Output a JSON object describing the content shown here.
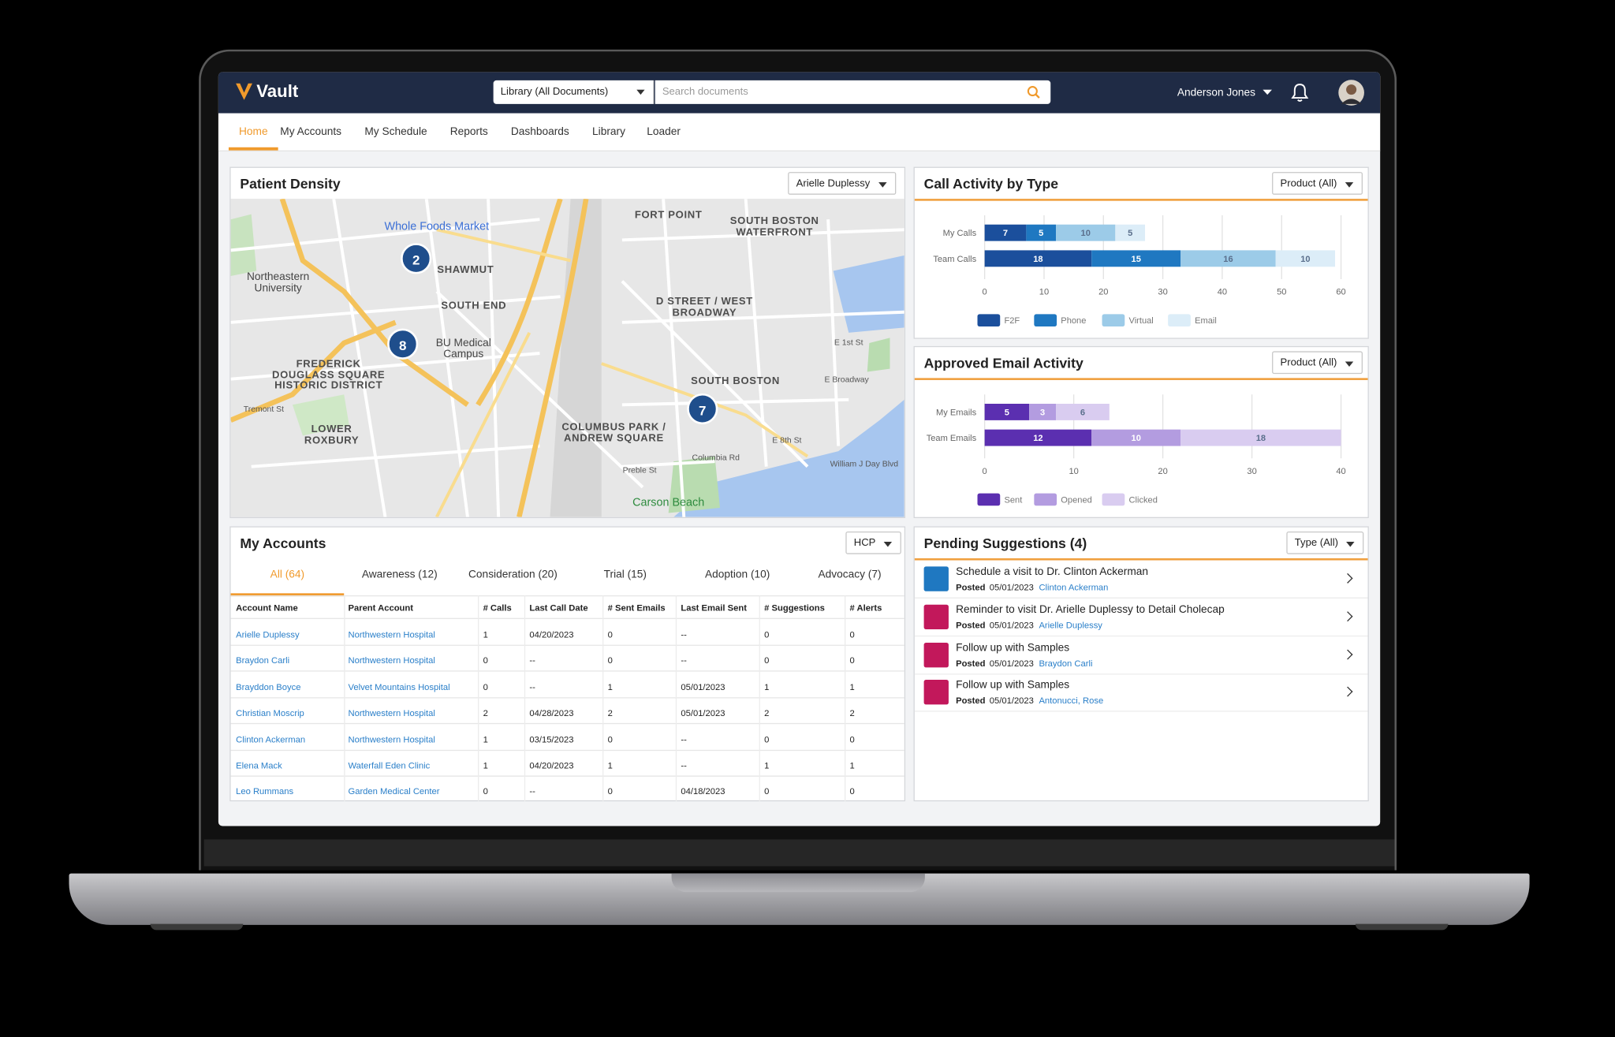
{
  "header": {
    "logo": "Vault",
    "library_select": "Library (All Documents)",
    "search_placeholder": "Search documents",
    "user": "Anderson Jones"
  },
  "nav": [
    "Home",
    "My Accounts",
    "My Schedule",
    "Reports",
    "Dashboards",
    "Library",
    "Loader"
  ],
  "patient_density": {
    "title": "Patient Density",
    "filter": "Arielle Duplessy",
    "labels": [
      "Whole Foods Market",
      "FORT POINT",
      "SOUTH BOSTON WATERFRONT",
      "SHAWMUT",
      "Northeastern University",
      "SOUTH END",
      "D STREET / WEST BROADWAY",
      "BU Medical Campus",
      "FREDERICK DOUGLASS SQUARE HISTORIC DISTRICT",
      "SOUTH BOSTON",
      "COLUMBUS PARK / ANDREW SQUARE",
      "LOWER ROXBURY",
      "Carson Beach",
      "Columbia Rd",
      "E Broadway",
      "E 8th St",
      "Preble St",
      "William J Day Blvd",
      "Tremont St",
      "E 1st St"
    ],
    "clusters": [
      "2",
      "8",
      "7"
    ]
  },
  "chart_data": [
    {
      "type": "bar",
      "orientation": "horizontal",
      "stacked": true,
      "title": "Call Activity by Type",
      "filter": "Product (All)",
      "categories": [
        "My Calls",
        "Team Calls"
      ],
      "series": [
        {
          "name": "F2F",
          "color": "#1b4f9c",
          "values": [
            7,
            18
          ]
        },
        {
          "name": "Phone",
          "color": "#1f78c1",
          "values": [
            5,
            15
          ]
        },
        {
          "name": "Virtual",
          "color": "#9ccbe8",
          "values": [
            10,
            16
          ]
        },
        {
          "name": "Email",
          "color": "#dcedf8",
          "values": [
            5,
            10
          ]
        }
      ],
      "xlim": [
        0,
        60
      ],
      "xticks": [
        0,
        10,
        20,
        30,
        40,
        50,
        60
      ],
      "grid": true
    },
    {
      "type": "bar",
      "orientation": "horizontal",
      "stacked": true,
      "title": "Approved Email Activity",
      "filter": "Product (All)",
      "categories": [
        "My Emails",
        "Team Emails"
      ],
      "series": [
        {
          "name": "Sent",
          "color": "#5b2fb0",
          "values": [
            5,
            12
          ]
        },
        {
          "name": "Opened",
          "color": "#b39ce0",
          "values": [
            3,
            10
          ]
        },
        {
          "name": "Clicked",
          "color": "#d9ccf0",
          "values": [
            6,
            18
          ]
        }
      ],
      "xlim": [
        0,
        40
      ],
      "xticks": [
        0,
        10,
        20,
        30,
        40
      ],
      "grid": true
    }
  ],
  "my_accounts": {
    "title": "My Accounts",
    "filter": "HCP",
    "tabs": [
      "All (64)",
      "Awareness (12)",
      "Consideration (20)",
      "Trial (15)",
      "Adoption (10)",
      "Advocacy (7)"
    ],
    "columns": [
      "Account Name",
      "Parent Account",
      "# Calls",
      "Last Call Date",
      "# Sent Emails",
      "Last Email Sent",
      "# Suggestions",
      "# Alerts"
    ],
    "rows": [
      [
        "Arielle Duplessy",
        "Northwestern Hospital",
        1,
        "04/20/2023",
        0,
        "--",
        0,
        0
      ],
      [
        "Braydon Carli",
        "Northwestern Hospital",
        0,
        "--",
        0,
        "--",
        0,
        0
      ],
      [
        "Brayddon Boyce",
        "Velvet Mountains Hospital",
        0,
        "--",
        1,
        "05/01/2023",
        1,
        1
      ],
      [
        "Christian Moscrip",
        "Northwestern Hospital",
        2,
        "04/28/2023",
        2,
        "05/01/2023",
        2,
        2
      ],
      [
        "Clinton Ackerman",
        "Northwestern Hospital",
        1,
        "03/15/2023",
        0,
        "--",
        0,
        0
      ],
      [
        "Elena Mack",
        "Waterfall Eden Clinic",
        1,
        "04/20/2023",
        1,
        "--",
        1,
        1
      ],
      [
        "Leo Rummans",
        "Garden Medical Center",
        0,
        "--",
        0,
        "04/18/2023",
        0,
        0
      ]
    ]
  },
  "pending_suggestions": {
    "title": "Pending Suggestions (4)",
    "filter": "Type (All)",
    "items": [
      {
        "title": "Schedule a visit to Dr. Clinton Ackerman",
        "posted": "Posted",
        "date": "05/01/2023",
        "account": "Clinton Ackerman"
      },
      {
        "title": "Reminder to visit Dr. Arielle Duplessy to Detail Cholecap",
        "posted": "Posted",
        "date": "05/01/2023",
        "account": "Arielle Duplessy"
      },
      {
        "title": "Follow up with Samples",
        "posted": "Posted",
        "date": "05/01/2023",
        "account": "Braydon Carli"
      },
      {
        "title": "Follow up with Samples",
        "posted": "Posted",
        "date": "05/01/2023",
        "account": "Antonucci, Rose"
      }
    ]
  }
}
